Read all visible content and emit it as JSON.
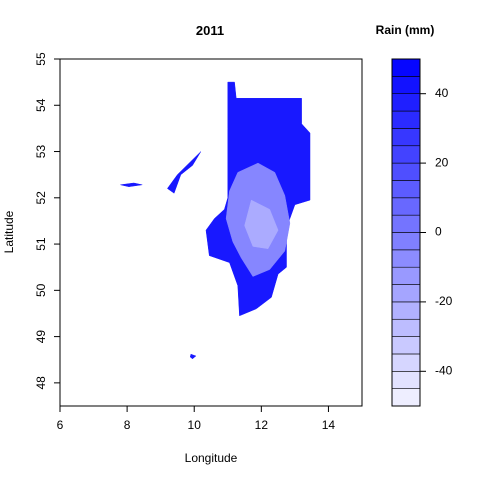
{
  "chart_data": {
    "type": "heatmap",
    "title": "2011",
    "xlabel": "Longitude",
    "ylabel": "Latitude",
    "xlim": [
      6,
      15
    ],
    "ylim": [
      47.5,
      55
    ],
    "x_ticks": [
      "6",
      "8",
      "10",
      "12",
      "14"
    ],
    "y_ticks": [
      "48",
      "49",
      "50",
      "51",
      "52",
      "53",
      "54",
      "55"
    ],
    "grid": false,
    "colorbar": {
      "title": "Rain (mm)",
      "range": [
        -50,
        50
      ],
      "ticks": [
        "-40",
        "-20",
        "0",
        "20",
        "40"
      ],
      "low_color": "#f4f4ff",
      "high_color": "#0000ff"
    },
    "regions": [
      {
        "name": "main-area",
        "value": 40,
        "outline": [
          [
            11.0,
            54.5
          ],
          [
            11.2,
            54.5
          ],
          [
            11.25,
            54.15
          ],
          [
            13.2,
            54.15
          ],
          [
            13.2,
            53.6
          ],
          [
            13.45,
            53.4
          ],
          [
            13.45,
            51.95
          ],
          [
            13.0,
            51.85
          ],
          [
            12.75,
            51.35
          ],
          [
            12.75,
            50.5
          ],
          [
            12.5,
            50.35
          ],
          [
            12.3,
            49.85
          ],
          [
            11.85,
            49.6
          ],
          [
            11.35,
            49.45
          ],
          [
            11.3,
            50.1
          ],
          [
            11.05,
            50.6
          ],
          [
            10.45,
            50.75
          ],
          [
            10.35,
            51.3
          ],
          [
            10.6,
            51.55
          ],
          [
            10.9,
            51.75
          ],
          [
            11.0,
            52.0
          ],
          [
            11.0,
            53.5
          ]
        ]
      },
      {
        "name": "main-area-low-rain",
        "value": -5,
        "outline": [
          [
            11.3,
            52.55
          ],
          [
            11.9,
            52.75
          ],
          [
            12.4,
            52.55
          ],
          [
            12.7,
            52.05
          ],
          [
            12.85,
            51.45
          ],
          [
            12.7,
            50.85
          ],
          [
            12.25,
            50.45
          ],
          [
            11.75,
            50.3
          ],
          [
            11.4,
            50.7
          ],
          [
            11.15,
            51.05
          ],
          [
            10.95,
            51.55
          ],
          [
            11.05,
            52.15
          ]
        ]
      },
      {
        "name": "main-area-lowest-rain",
        "value": -20,
        "outline": [
          [
            11.7,
            51.95
          ],
          [
            12.25,
            51.75
          ],
          [
            12.5,
            51.3
          ],
          [
            12.2,
            50.9
          ],
          [
            11.75,
            50.95
          ],
          [
            11.5,
            51.4
          ]
        ]
      },
      {
        "name": "west-patch",
        "value": 40,
        "outline": [
          [
            9.5,
            52.5
          ],
          [
            10.2,
            53.0
          ],
          [
            9.95,
            52.7
          ],
          [
            9.6,
            52.5
          ],
          [
            9.4,
            52.1
          ],
          [
            9.2,
            52.2
          ]
        ]
      },
      {
        "name": "small-west-patch",
        "value": 40,
        "outline": [
          [
            7.8,
            52.28
          ],
          [
            8.2,
            52.32
          ],
          [
            8.45,
            52.28
          ],
          [
            8.05,
            52.24
          ]
        ]
      },
      {
        "name": "south-patch",
        "value": 40,
        "outline": [
          [
            9.9,
            48.62
          ],
          [
            10.05,
            48.58
          ],
          [
            9.95,
            48.52
          ],
          [
            9.88,
            48.56
          ]
        ]
      }
    ]
  }
}
